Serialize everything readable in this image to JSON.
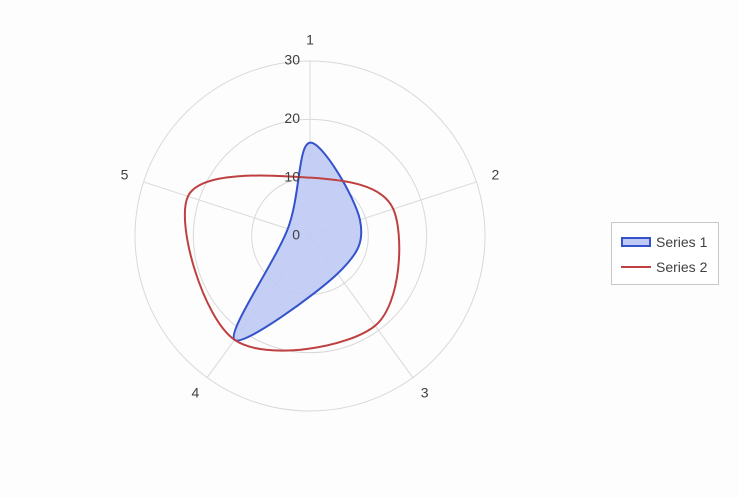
{
  "chart_data": {
    "type": "radar",
    "categories": [
      "1",
      "2",
      "3",
      "4",
      "5"
    ],
    "rlim": [
      0,
      30
    ],
    "r_ticks": [
      0,
      10,
      20,
      30
    ],
    "grid": true,
    "legend_position": "right",
    "series": [
      {
        "name": "Series 1",
        "values": [
          16,
          9,
          8,
          22,
          4
        ],
        "fill": "#bfcaf4",
        "stroke": "#3352cc",
        "style": "filled-area"
      },
      {
        "name": "Series 2",
        "values": [
          10,
          15,
          19,
          22,
          22
        ],
        "stroke": "#bf4040",
        "style": "line"
      }
    ]
  }
}
